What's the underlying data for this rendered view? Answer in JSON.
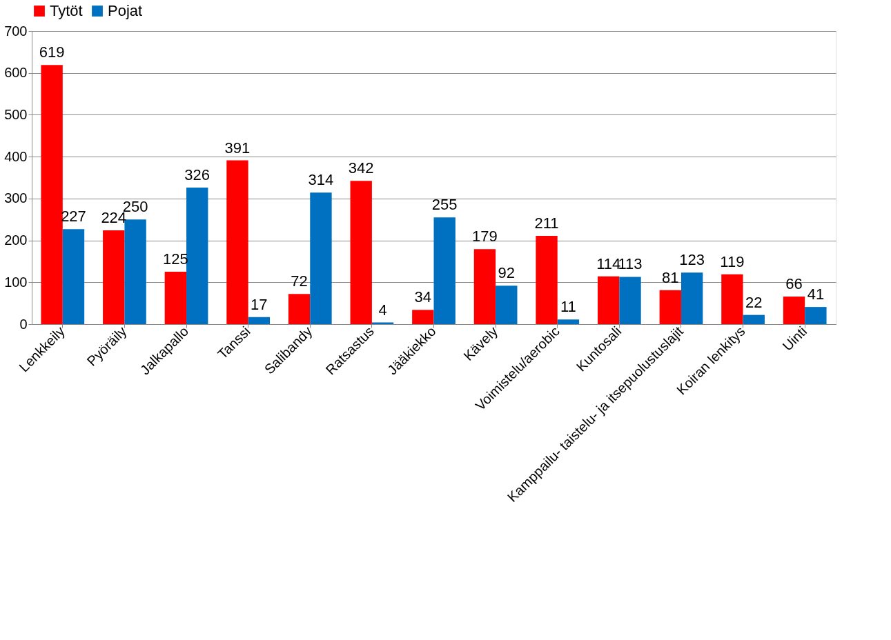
{
  "chart_data": {
    "type": "bar",
    "categories": [
      "Lenkkeily",
      "Pyöräily",
      "Jalkapallo",
      "Tanssi",
      "Salibandy",
      "Ratsastus",
      "Jääkiekko",
      "Kävely",
      "Voimistelu/aerobic",
      "Kuntosali",
      "Kamppailu- taistelu- ja itsepuolustuslajit",
      "Koiran lenkitys",
      "Uinti"
    ],
    "series": [
      {
        "name": "Tytöt",
        "color": "#ff0000",
        "values": [
          619,
          224,
          125,
          391,
          72,
          342,
          34,
          179,
          211,
          114,
          81,
          119,
          66
        ]
      },
      {
        "name": "Pojat",
        "color": "#0070c0",
        "values": [
          227,
          250,
          326,
          17,
          314,
          4,
          255,
          92,
          11,
          113,
          123,
          22,
          41
        ]
      }
    ],
    "ylim": [
      0,
      700
    ],
    "yticks": [
      0,
      100,
      200,
      300,
      400,
      500,
      600,
      700
    ],
    "grid": "y",
    "legend": "top",
    "data_labels": true
  }
}
